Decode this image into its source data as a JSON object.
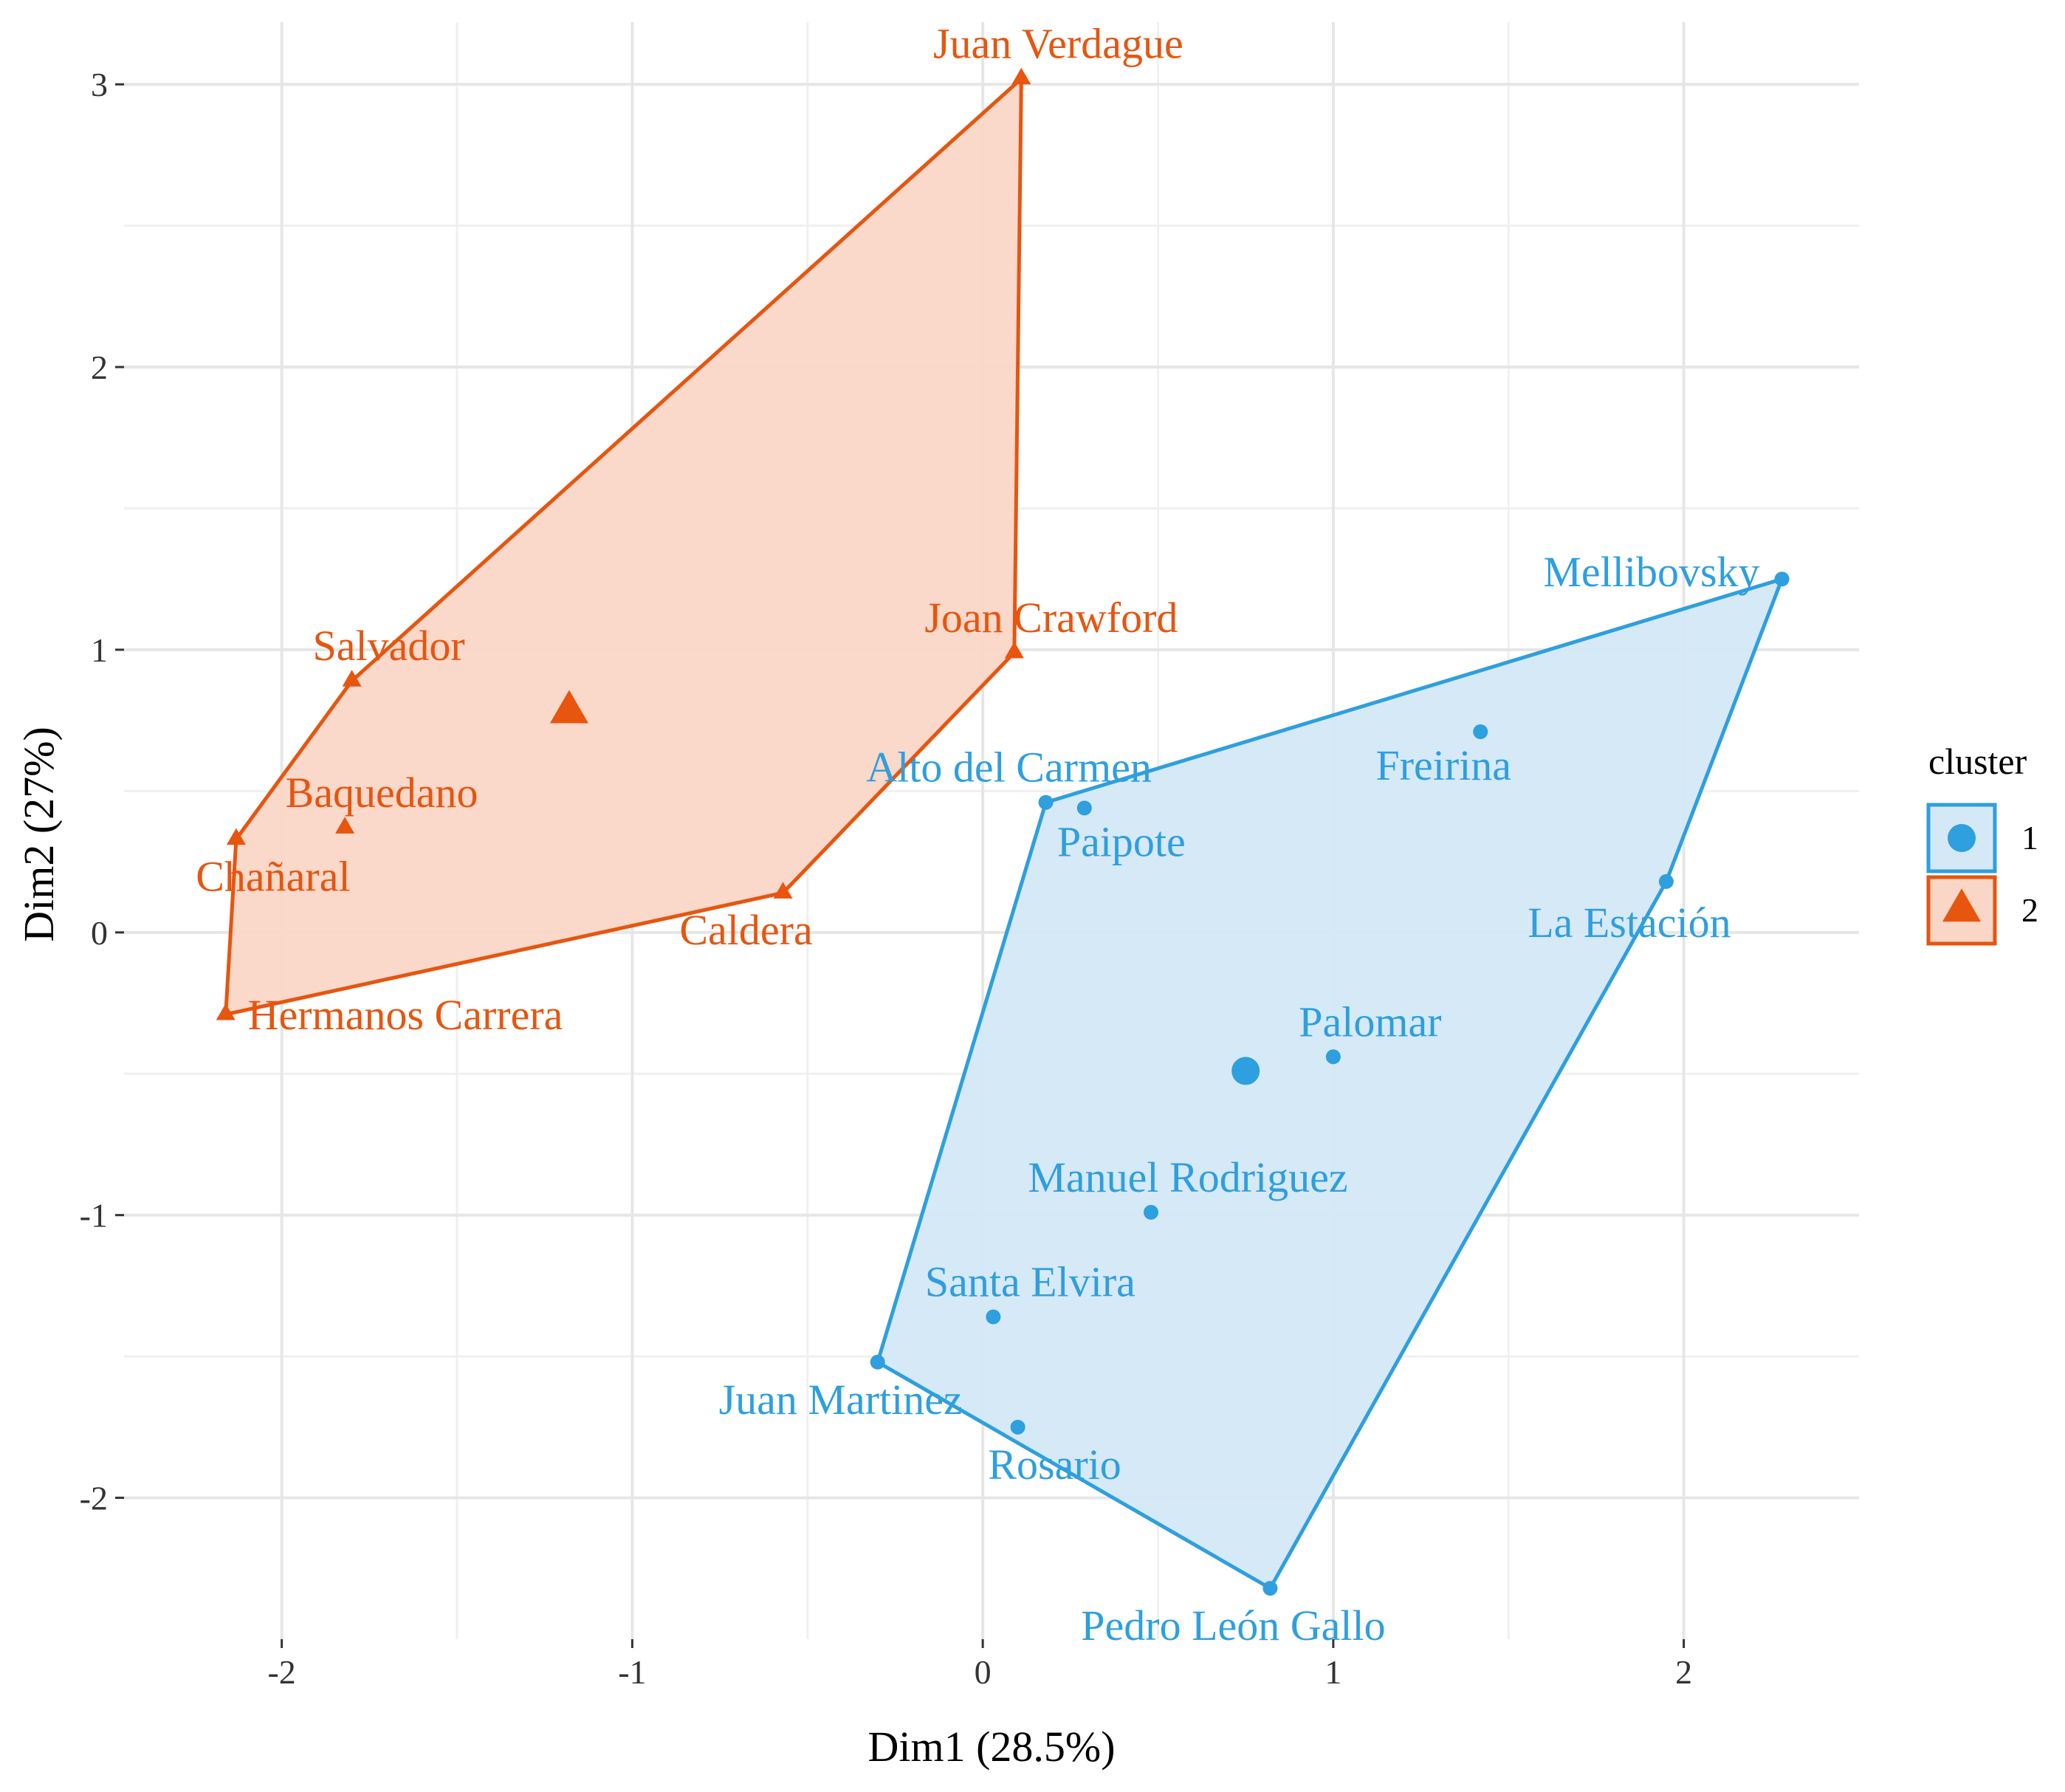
{
  "chart_data": {
    "type": "scatter",
    "xlabel": "Dim1 (28.5%)",
    "ylabel": "Dim2 (27%)",
    "xlim": [
      -2.45,
      2.5
    ],
    "ylim": [
      -2.5,
      3.22
    ],
    "x_ticks": [
      -2,
      -1,
      0,
      1,
      2
    ],
    "y_ticks": [
      -2,
      -1,
      0,
      1,
      2,
      3
    ],
    "x_tick_labels": [
      "-2",
      "-1",
      "0",
      "1",
      "2"
    ],
    "y_tick_labels": [
      "-2",
      "-1",
      "0",
      "1",
      "2",
      "3"
    ],
    "grid": true,
    "legend": {
      "title": "cluster",
      "placement": "right",
      "entries": [
        {
          "label": "1",
          "marker": "circle",
          "color": "#2E9FDF"
        },
        {
          "label": "2",
          "marker": "triangle",
          "color": "#E7550F"
        }
      ]
    },
    "series": [
      {
        "name": "1",
        "color": "#2E9FDF",
        "fill": "#D4E8F6",
        "marker": "circle",
        "points": [
          {
            "label": "Mellibovsky",
            "x": 2.28,
            "y": 1.25
          },
          {
            "label": "Freirina",
            "x": 1.42,
            "y": 0.71
          },
          {
            "label": "Alto del Carmen",
            "x": 0.18,
            "y": 0.46
          },
          {
            "label": "Paipote",
            "x": 0.29,
            "y": 0.44
          },
          {
            "label": "La Estación",
            "x": 1.95,
            "y": 0.18
          },
          {
            "label": "Palomar",
            "x": 1.0,
            "y": -0.44
          },
          {
            "label": "Manuel Rodriguez",
            "x": 0.48,
            "y": -0.99
          },
          {
            "label": "Santa Elvira",
            "x": 0.03,
            "y": -1.36
          },
          {
            "label": "Juan Martinez",
            "x": -0.3,
            "y": -1.52
          },
          {
            "label": "Rosario",
            "x": 0.1,
            "y": -1.75
          },
          {
            "label": "Pedro León Gallo",
            "x": 0.82,
            "y": -2.32
          }
        ],
        "hull": [
          "Mellibovsky",
          "La Estación",
          "Pedro León Gallo",
          "Juan Martinez",
          "Alto del Carmen"
        ],
        "centroid": {
          "x": 0.75,
          "y": -0.49
        }
      },
      {
        "name": "2",
        "color": "#E7550F",
        "fill": "#FAD6C7",
        "marker": "triangle",
        "points": [
          {
            "label": "Juan Verdague",
            "x": 0.11,
            "y": 3.02
          },
          {
            "label": "Joan Crawford",
            "x": 0.09,
            "y": 0.99
          },
          {
            "label": "Salvador",
            "x": -1.8,
            "y": 0.89
          },
          {
            "label": "Baquedano",
            "x": -1.82,
            "y": 0.37
          },
          {
            "label": "Chañaral",
            "x": -2.13,
            "y": 0.33
          },
          {
            "label": "Caldera",
            "x": -0.57,
            "y": 0.14
          },
          {
            "label": "Hermanos Carrera",
            "x": -2.16,
            "y": -0.29
          }
        ],
        "hull": [
          "Juan Verdague",
          "Joan Crawford",
          "Caldera",
          "Hermanos Carrera",
          "Chañaral",
          "Salvador"
        ],
        "centroid": {
          "x": -1.18,
          "y": 0.78
        }
      }
    ]
  }
}
